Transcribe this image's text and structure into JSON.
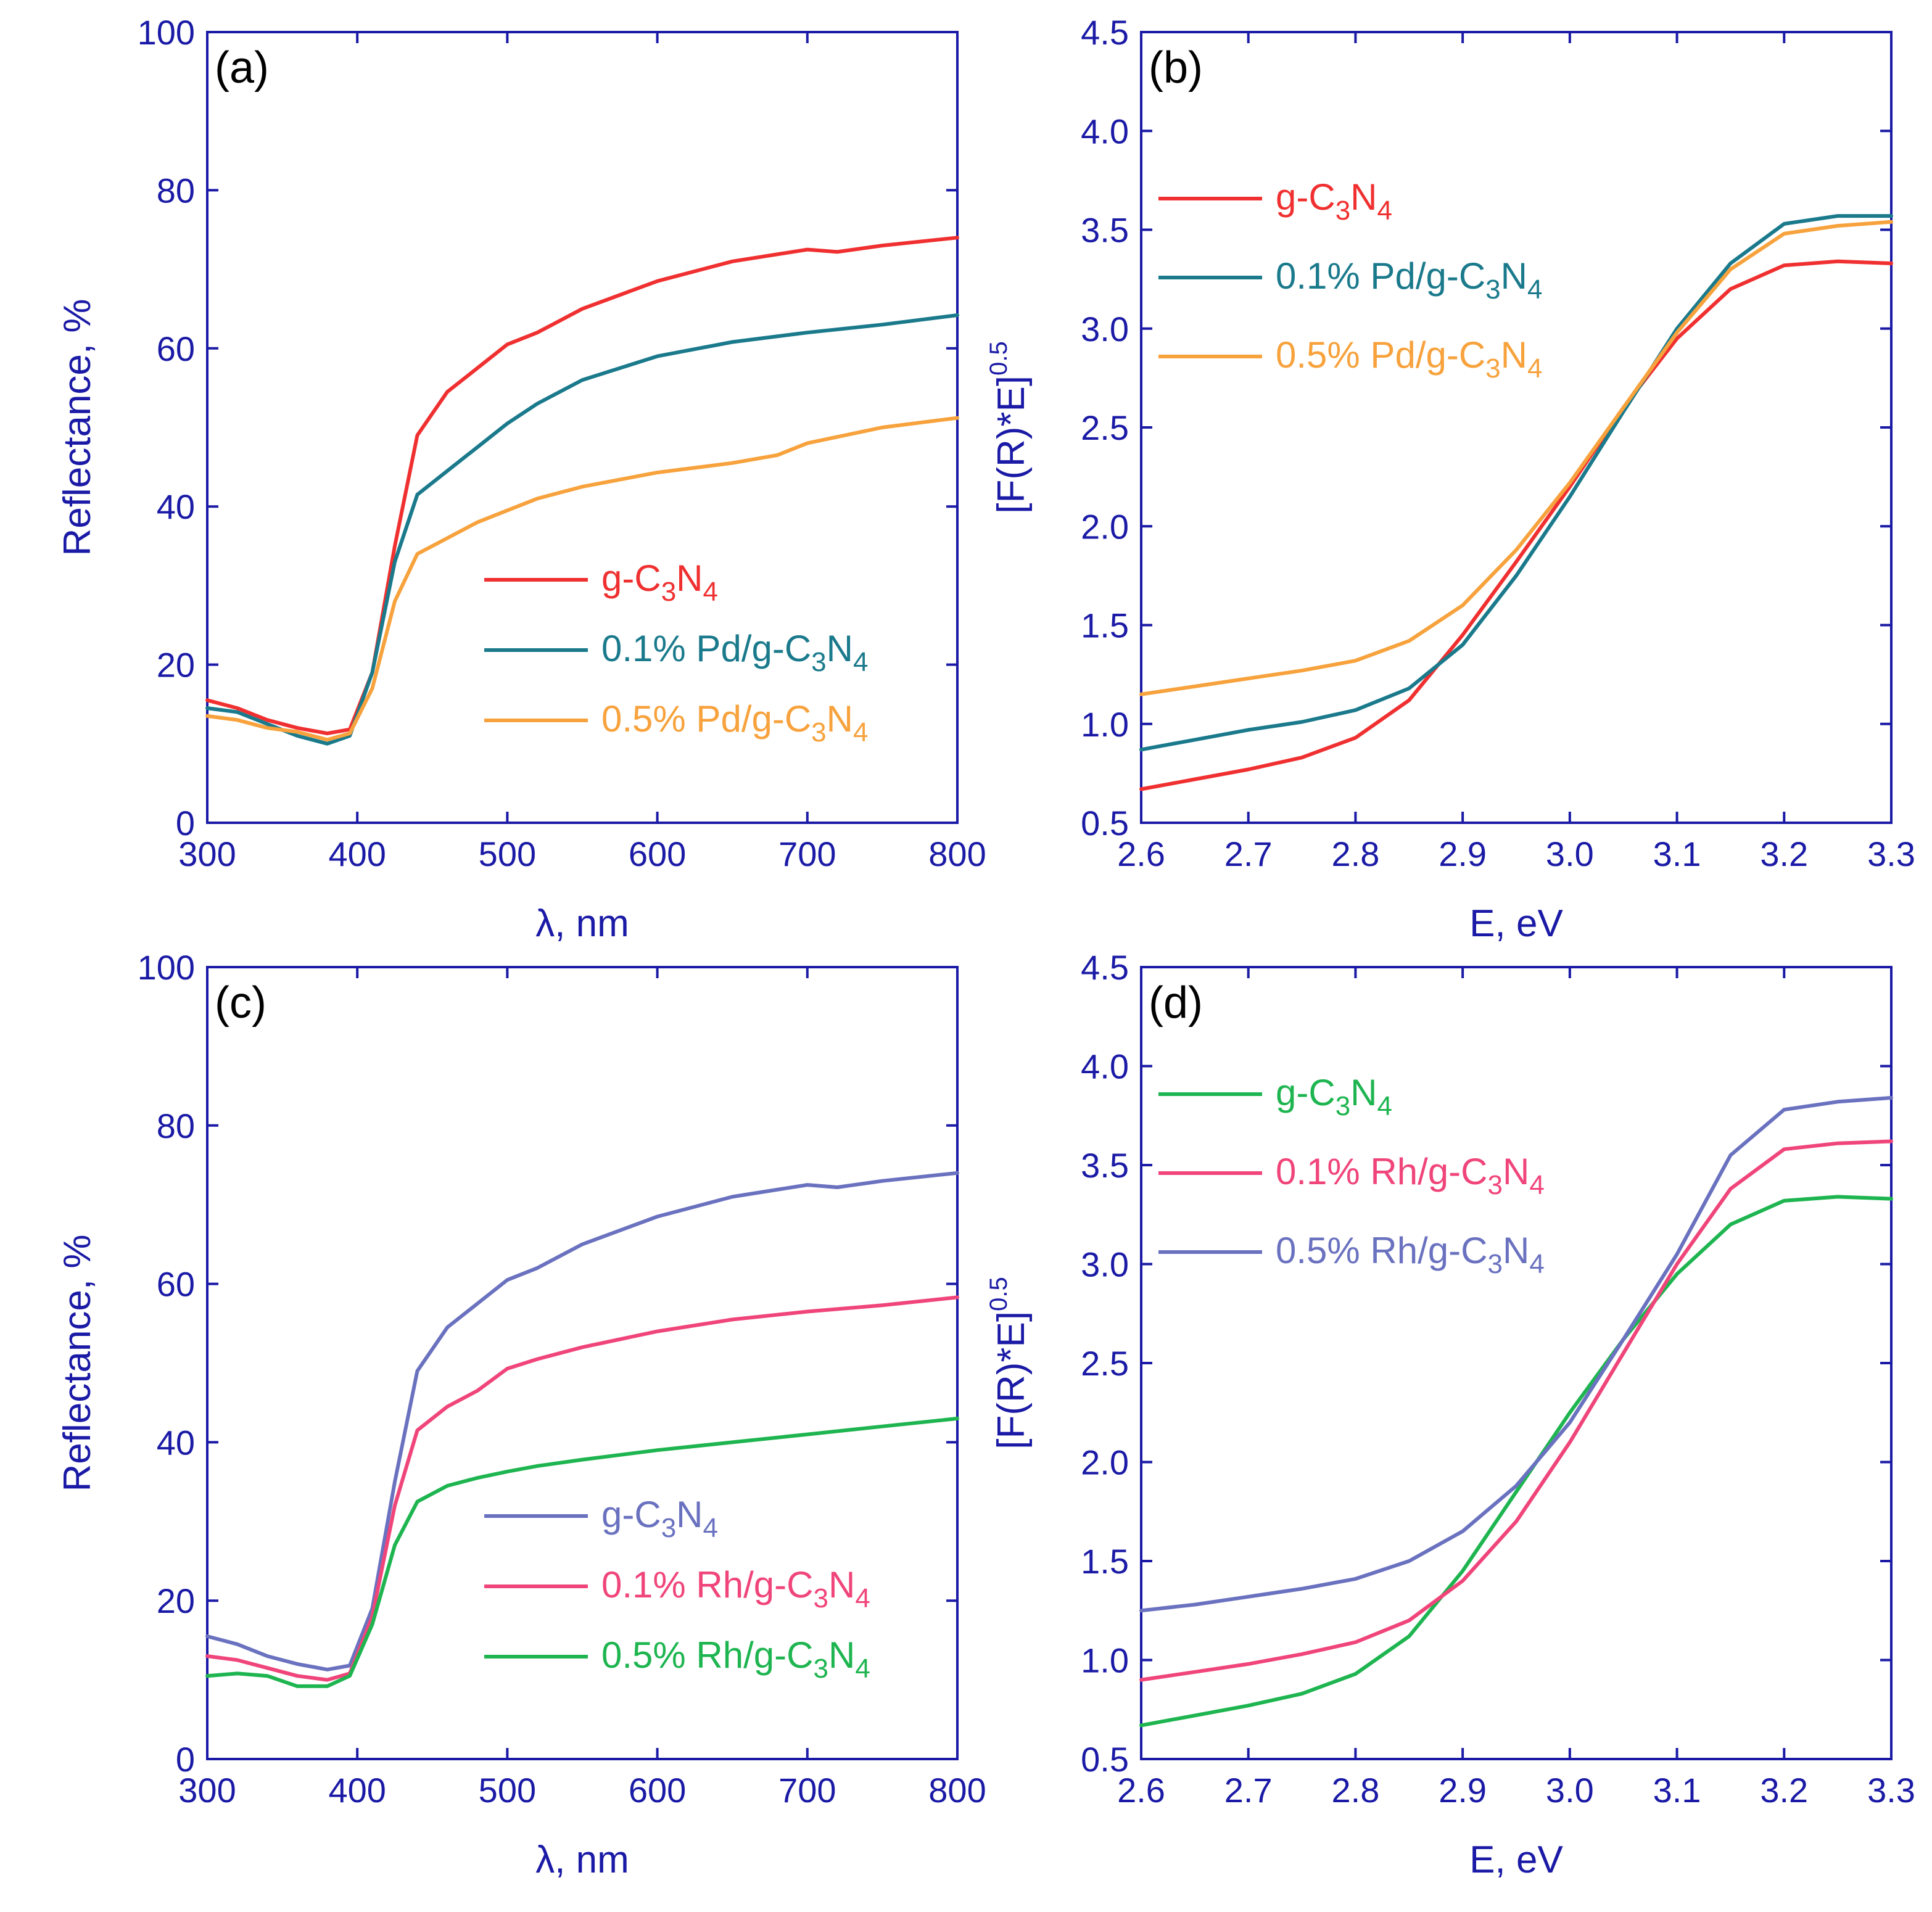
{
  "chart_data": [
    {
      "type": "line",
      "panel": "(a)",
      "xlabel": "λ, nm",
      "ylabel": "Reflectance, %",
      "xlim": [
        300,
        800
      ],
      "ylim": [
        0,
        100
      ],
      "xticks": [
        300,
        400,
        500,
        600,
        700,
        800
      ],
      "yticks": [
        0,
        20,
        40,
        60,
        80,
        100
      ],
      "legend_position": "center-right",
      "series": [
        {
          "name": "g-C3N4",
          "legend": [
            "g-C",
            "3",
            "N",
            "4",
            ""
          ],
          "color": "#f03030",
          "x": [
            300,
            320,
            340,
            360,
            380,
            395,
            410,
            425,
            440,
            460,
            480,
            500,
            520,
            550,
            600,
            650,
            700,
            720,
            750,
            800
          ],
          "y": [
            15.5,
            14.5,
            13,
            12,
            11.3,
            11.8,
            19,
            35,
            49,
            54.5,
            57.5,
            60.5,
            62,
            65,
            68.5,
            71,
            72.5,
            72.2,
            73,
            74
          ]
        },
        {
          "name": "0.1% Pd/g-C3N4",
          "legend": [
            "0.1% Pd/g-C",
            "3",
            "N",
            "4",
            ""
          ],
          "color": "#1a7a8c",
          "x": [
            300,
            320,
            340,
            360,
            380,
            395,
            410,
            425,
            440,
            460,
            480,
            500,
            520,
            550,
            600,
            650,
            700,
            750,
            800
          ],
          "y": [
            14.5,
            14,
            12.5,
            11,
            10,
            11,
            19,
            33,
            41.5,
            44.5,
            47.5,
            50.5,
            53,
            56,
            59,
            60.8,
            62,
            63,
            64.2
          ]
        },
        {
          "name": "0.5% Pd/g-C3N4",
          "legend": [
            "0.5% Pd/g-C",
            "3",
            "N",
            "4",
            ""
          ],
          "color": "#f7a23c",
          "x": [
            300,
            320,
            340,
            360,
            380,
            395,
            410,
            425,
            440,
            460,
            480,
            500,
            520,
            550,
            600,
            650,
            680,
            700,
            750,
            800
          ],
          "y": [
            13.5,
            13,
            12,
            11.5,
            10.5,
            11.3,
            17,
            28,
            34,
            36,
            38,
            39.5,
            41,
            42.5,
            44.3,
            45.5,
            46.5,
            48,
            50,
            51.2
          ]
        }
      ]
    },
    {
      "type": "line",
      "panel": "(b)",
      "xlabel": "E, eV",
      "ylabel": "[F(R)*E]",
      "ylabel_sup": "0.5",
      "xlim": [
        2.6,
        3.3
      ],
      "ylim": [
        0.5,
        4.5
      ],
      "xticks": [
        "2.6",
        "2.7",
        "2.8",
        "2.9",
        "3.0",
        "3.1",
        "3.2",
        "3.3"
      ],
      "yticks": [
        "0.5",
        "1.0",
        "1.5",
        "2.0",
        "2.5",
        "3.0",
        "3.5",
        "4.0",
        "4.5"
      ],
      "legend_position": "top-left",
      "series": [
        {
          "name": "g-C3N4",
          "legend": [
            "g-C",
            "3",
            "N",
            "4",
            ""
          ],
          "color": "#f03030",
          "x": [
            2.6,
            2.65,
            2.7,
            2.75,
            2.8,
            2.85,
            2.9,
            2.95,
            3.0,
            3.05,
            3.1,
            3.15,
            3.2,
            3.25,
            3.3
          ],
          "y": [
            0.67,
            0.72,
            0.77,
            0.83,
            0.93,
            1.12,
            1.45,
            1.82,
            2.2,
            2.6,
            2.95,
            3.2,
            3.32,
            3.34,
            3.33
          ]
        },
        {
          "name": "0.1% Pd/g-C3N4",
          "legend": [
            "0.1% Pd/g-C",
            "3",
            "N",
            "4",
            ""
          ],
          "color": "#1a7a8c",
          "x": [
            2.6,
            2.65,
            2.7,
            2.75,
            2.8,
            2.85,
            2.9,
            2.95,
            3.0,
            3.05,
            3.1,
            3.15,
            3.2,
            3.25,
            3.3
          ],
          "y": [
            0.87,
            0.92,
            0.97,
            1.01,
            1.07,
            1.18,
            1.4,
            1.75,
            2.15,
            2.58,
            3.0,
            3.33,
            3.53,
            3.57,
            3.57
          ]
        },
        {
          "name": "0.5% Pd/g-C3N4",
          "legend": [
            "0.5% Pd/g-C",
            "3",
            "N",
            "4",
            ""
          ],
          "color": "#f7a23c",
          "x": [
            2.6,
            2.65,
            2.7,
            2.75,
            2.8,
            2.85,
            2.9,
            2.95,
            3.0,
            3.05,
            3.1,
            3.15,
            3.2,
            3.25,
            3.3
          ],
          "y": [
            1.15,
            1.19,
            1.23,
            1.27,
            1.32,
            1.42,
            1.6,
            1.88,
            2.22,
            2.6,
            2.98,
            3.3,
            3.48,
            3.52,
            3.54
          ]
        }
      ]
    },
    {
      "type": "line",
      "panel": "(c)",
      "xlabel": "λ, nm",
      "ylabel": "Reflectance, %",
      "xlim": [
        300,
        800
      ],
      "ylim": [
        0,
        100
      ],
      "xticks": [
        300,
        400,
        500,
        600,
        700,
        800
      ],
      "yticks": [
        0,
        20,
        40,
        60,
        80,
        100
      ],
      "legend_position": "center-right",
      "series": [
        {
          "name": "g-C3N4",
          "legend": [
            "g-C",
            "3",
            "N",
            "4",
            ""
          ],
          "color": "#6a72c0",
          "x": [
            300,
            320,
            340,
            360,
            380,
            395,
            410,
            425,
            440,
            460,
            480,
            500,
            520,
            550,
            600,
            650,
            700,
            720,
            750,
            800
          ],
          "y": [
            15.5,
            14.5,
            13,
            12,
            11.3,
            11.8,
            19,
            35,
            49,
            54.5,
            57.5,
            60.5,
            62,
            65,
            68.5,
            71,
            72.5,
            72.2,
            73,
            74
          ]
        },
        {
          "name": "0.1% Rh/g-C3N4",
          "legend": [
            "0.1% Rh/g-C",
            "3",
            "N",
            "4",
            ""
          ],
          "color": "#f0457a",
          "x": [
            300,
            320,
            340,
            360,
            380,
            395,
            410,
            425,
            440,
            460,
            480,
            500,
            520,
            550,
            600,
            650,
            700,
            750,
            800
          ],
          "y": [
            13,
            12.5,
            11.5,
            10.5,
            10,
            10.8,
            18,
            32,
            41.5,
            44.5,
            46.5,
            49.3,
            50.5,
            52,
            54,
            55.5,
            56.5,
            57.3,
            58.3
          ]
        },
        {
          "name": "0.5% Rh/g-C3N4",
          "legend": [
            "0.5% Rh/g-C",
            "3",
            "N",
            "4",
            ""
          ],
          "color": "#1eb550",
          "x": [
            300,
            320,
            340,
            360,
            380,
            395,
            410,
            425,
            440,
            460,
            480,
            500,
            520,
            550,
            600,
            650,
            700,
            750,
            800
          ],
          "y": [
            10.5,
            10.8,
            10.5,
            9.2,
            9.2,
            10.5,
            17,
            27,
            32.5,
            34.5,
            35.5,
            36.3,
            37,
            37.8,
            39,
            40,
            41,
            42,
            43
          ]
        }
      ]
    },
    {
      "type": "line",
      "panel": "(d)",
      "xlabel": "E, eV",
      "ylabel": "[F(R)*E]",
      "ylabel_sup": "0.5",
      "xlim": [
        2.6,
        3.3
      ],
      "ylim": [
        0.5,
        4.5
      ],
      "xticks": [
        "2.6",
        "2.7",
        "2.8",
        "2.9",
        "3.0",
        "3.1",
        "3.2",
        "3.3"
      ],
      "yticks": [
        "0.5",
        "1.0",
        "1.5",
        "2.0",
        "2.5",
        "3.0",
        "3.5",
        "4.0",
        "4.5"
      ],
      "legend_position": "top-left",
      "series": [
        {
          "name": "g-C3N4",
          "legend": [
            "g-C",
            "3",
            "N",
            "4",
            ""
          ],
          "color": "#1eb550",
          "x": [
            2.6,
            2.65,
            2.7,
            2.75,
            2.8,
            2.85,
            2.9,
            2.95,
            3.0,
            3.05,
            3.1,
            3.15,
            3.2,
            3.25,
            3.3
          ],
          "y": [
            0.67,
            0.72,
            0.77,
            0.83,
            0.93,
            1.12,
            1.45,
            1.85,
            2.25,
            2.62,
            2.95,
            3.2,
            3.32,
            3.34,
            3.33
          ]
        },
        {
          "name": "0.1% Rh/g-C3N4",
          "legend": [
            "0.1% Rh/g-C",
            "3",
            "N",
            "4",
            ""
          ],
          "color": "#f0457a",
          "x": [
            2.6,
            2.65,
            2.7,
            2.75,
            2.8,
            2.85,
            2.9,
            2.95,
            3.0,
            3.05,
            3.1,
            3.15,
            3.2,
            3.25,
            3.3
          ],
          "y": [
            0.9,
            0.94,
            0.98,
            1.03,
            1.09,
            1.2,
            1.4,
            1.7,
            2.1,
            2.55,
            3.0,
            3.38,
            3.58,
            3.61,
            3.62
          ]
        },
        {
          "name": "0.5% Rh/g-C3N4",
          "legend": [
            "0.5% Rh/g-C",
            "3",
            "N",
            "4",
            ""
          ],
          "color": "#6a72c0",
          "x": [
            2.6,
            2.65,
            2.7,
            2.75,
            2.8,
            2.85,
            2.9,
            2.95,
            3.0,
            3.05,
            3.1,
            3.15,
            3.2,
            3.25,
            3.3
          ],
          "y": [
            1.25,
            1.28,
            1.32,
            1.36,
            1.41,
            1.5,
            1.65,
            1.88,
            2.2,
            2.62,
            3.05,
            3.55,
            3.78,
            3.82,
            3.84
          ]
        }
      ]
    }
  ]
}
